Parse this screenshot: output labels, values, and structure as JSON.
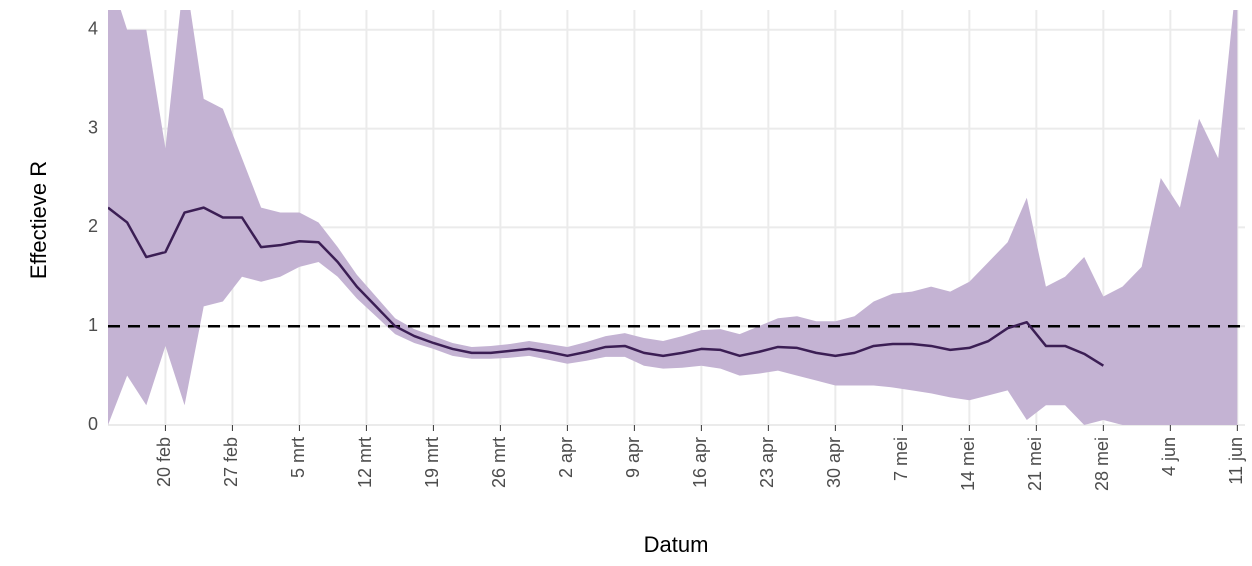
{
  "chart_data": {
    "type": "line",
    "x_title": "Datum",
    "y_title": "Effectieve R",
    "x": [
      -6,
      -4,
      -2,
      0,
      2,
      4,
      6,
      8,
      10,
      12,
      14,
      16,
      18,
      20,
      22,
      24,
      26,
      28,
      30,
      32,
      34,
      36,
      38,
      40,
      42,
      44,
      46,
      48,
      50,
      52,
      54,
      56,
      58,
      60,
      62,
      64,
      66,
      68,
      70,
      72,
      74,
      76,
      78,
      80,
      82,
      84,
      86,
      88,
      90,
      92,
      94,
      96,
      98,
      100,
      102,
      104,
      106,
      108,
      110,
      112
    ],
    "values": [
      2.2,
      2.05,
      1.7,
      1.75,
      2.15,
      2.2,
      2.1,
      2.1,
      1.8,
      1.82,
      1.86,
      1.85,
      1.65,
      1.4,
      1.2,
      1.0,
      0.9,
      0.83,
      0.77,
      0.73,
      0.73,
      0.75,
      0.77,
      0.74,
      0.7,
      0.74,
      0.79,
      0.8,
      0.73,
      0.7,
      0.73,
      0.77,
      0.76,
      0.7,
      0.74,
      0.79,
      0.78,
      0.73,
      0.7,
      0.73,
      0.8,
      0.82,
      0.82,
      0.8,
      0.76,
      0.78,
      0.85,
      0.98,
      1.04,
      0.8,
      0.8,
      0.72,
      0.6,
      null,
      null,
      null,
      null,
      null,
      null,
      null
    ],
    "lower": [
      0,
      0.5,
      0.2,
      0.8,
      0.2,
      1.2,
      1.25,
      1.5,
      1.45,
      1.5,
      1.6,
      1.65,
      1.5,
      1.28,
      1.1,
      0.92,
      0.83,
      0.77,
      0.7,
      0.67,
      0.67,
      0.68,
      0.7,
      0.66,
      0.62,
      0.65,
      0.69,
      0.69,
      0.6,
      0.57,
      0.58,
      0.6,
      0.57,
      0.5,
      0.52,
      0.55,
      0.5,
      0.45,
      0.4,
      0.4,
      0.4,
      0.38,
      0.35,
      0.32,
      0.28,
      0.25,
      0.3,
      0.35,
      0.05,
      0.2,
      0.2,
      0,
      0.05,
      0,
      0,
      0,
      0,
      0,
      0,
      0
    ],
    "upper": [
      4.6,
      4.0,
      4.0,
      2.8,
      4.6,
      3.3,
      3.2,
      2.7,
      2.2,
      2.15,
      2.15,
      2.05,
      1.8,
      1.52,
      1.3,
      1.08,
      0.97,
      0.9,
      0.83,
      0.79,
      0.8,
      0.82,
      0.85,
      0.82,
      0.79,
      0.84,
      0.9,
      0.93,
      0.88,
      0.85,
      0.9,
      0.96,
      0.97,
      0.92,
      1.0,
      1.08,
      1.1,
      1.05,
      1.05,
      1.1,
      1.25,
      1.33,
      1.35,
      1.4,
      1.35,
      1.45,
      1.65,
      1.85,
      2.3,
      1.4,
      1.5,
      1.7,
      1.3,
      1.4,
      1.6,
      2.5,
      2.2,
      3.1,
      2.7,
      4.6
    ],
    "color": "#3b1e54",
    "band_color": "#c4b3d3",
    "hline": 1,
    "xlim": [
      -6,
      112.8
    ],
    "ylim": [
      0,
      4.2
    ],
    "xticks": [
      {
        "value": 0,
        "label": "20 feb"
      },
      {
        "value": 7,
        "label": "27 feb"
      },
      {
        "value": 14,
        "label": "5 mrt"
      },
      {
        "value": 21,
        "label": "12 mrt"
      },
      {
        "value": 28,
        "label": "19 mrt"
      },
      {
        "value": 35,
        "label": "26 mrt"
      },
      {
        "value": 42,
        "label": "2 apr"
      },
      {
        "value": 49,
        "label": "9 apr"
      },
      {
        "value": 56,
        "label": "16 apr"
      },
      {
        "value": 63,
        "label": "23 apr"
      },
      {
        "value": 70,
        "label": "30 apr"
      },
      {
        "value": 77,
        "label": "7 mei"
      },
      {
        "value": 84,
        "label": "14 mei"
      },
      {
        "value": 91,
        "label": "21 mei"
      },
      {
        "value": 98,
        "label": "28 mei"
      },
      {
        "value": 105,
        "label": "4 jun"
      },
      {
        "value": 112,
        "label": "11 jun"
      }
    ],
    "yticks": [
      0,
      1,
      2,
      3,
      4
    ],
    "grid": true
  }
}
